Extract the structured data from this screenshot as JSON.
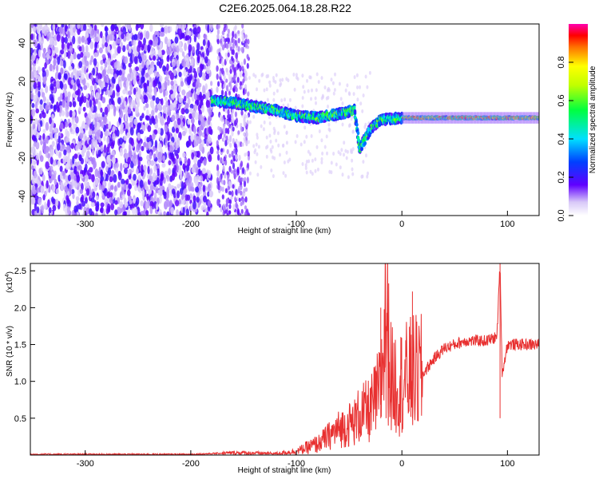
{
  "title": "C2E6.2025.064.18.28.R22",
  "chart_data": [
    {
      "type": "heatmap",
      "xlabel": "Height of straight line (km)",
      "ylabel": "Frequency (Hz)",
      "xlim": [
        -352,
        130
      ],
      "ylim": [
        -50,
        50
      ],
      "x_ticks": [
        -300,
        -200,
        -100,
        0,
        100
      ],
      "y_ticks": [
        -40,
        -20,
        0,
        20,
        40
      ],
      "colorbar": {
        "label": "Normalized spectral amplitude",
        "range": [
          0,
          1
        ],
        "ticks": [
          "0.0",
          "0.2",
          "0.4",
          "0.6",
          "0.8"
        ]
      },
      "ridge": {
        "x": [
          -180,
          -160,
          -140,
          -120,
          -100,
          -80,
          -60,
          -45,
          -40,
          -30,
          -20,
          0,
          20,
          50,
          80,
          100,
          130
        ],
        "y": [
          10,
          9,
          7,
          5,
          2,
          1,
          3,
          5,
          -15,
          -5,
          0,
          1,
          1,
          1,
          1,
          1,
          1
        ]
      },
      "noise_region_x": [
        -352,
        -180
      ],
      "grid": false
    },
    {
      "type": "line",
      "xlabel": "Height of straight line (km)",
      "ylabel": "SNR (10 * v/v)",
      "y_scale_label": "(x10",
      "y_scale_exp": "4",
      "y_scale_close": ")",
      "xlim": [
        -352,
        130
      ],
      "ylim": [
        0,
        2.6
      ],
      "x_ticks": [
        -300,
        -200,
        -100,
        0,
        100
      ],
      "y_ticks": [
        0.5,
        1.0,
        1.5,
        2.0,
        2.5
      ],
      "series": [
        {
          "color": "#e83030",
          "x": [
            -352,
            -200,
            -160,
            -150,
            -120,
            -100,
            -80,
            -60,
            -45,
            -40,
            -30,
            -20,
            -15,
            -10,
            0,
            10,
            20,
            30,
            40,
            50,
            60,
            80,
            90,
            93,
            95,
            100,
            130
          ],
          "y": [
            0.01,
            0.01,
            0.03,
            0.03,
            0.02,
            0.05,
            0.15,
            0.35,
            0.45,
            0.55,
            0.6,
            0.9,
            2.0,
            1.0,
            1.0,
            1.1,
            1.1,
            1.3,
            1.45,
            1.5,
            1.55,
            1.55,
            1.6,
            2.6,
            1.1,
            1.5,
            1.5
          ]
        }
      ],
      "grid": false
    }
  ]
}
